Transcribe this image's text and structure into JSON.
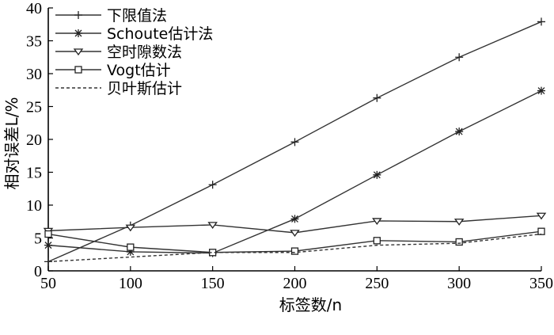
{
  "chart_data": {
    "type": "line",
    "xlabel": "标签数/n",
    "ylabel": "相对误差L/%",
    "xlim": [
      50,
      350
    ],
    "ylim": [
      0,
      40
    ],
    "xticks": [
      50,
      100,
      150,
      200,
      250,
      300,
      350
    ],
    "yticks": [
      0,
      5,
      10,
      15,
      20,
      25,
      30,
      35,
      40
    ],
    "x": [
      50,
      100,
      150,
      200,
      250,
      300,
      350
    ],
    "legend_position": "top-left",
    "series": [
      {
        "name": "下限值法",
        "marker": "plus",
        "dashed": false,
        "values": [
          1.4,
          6.9,
          13.1,
          19.6,
          26.3,
          32.5,
          37.9
        ]
      },
      {
        "name": "Schoute估计法",
        "marker": "asterisk",
        "dashed": false,
        "values": [
          3.9,
          2.9,
          2.7,
          7.9,
          14.6,
          21.2,
          27.4
        ]
      },
      {
        "name": "空时隙数法",
        "marker": "triangle-down",
        "dashed": false,
        "values": [
          6.1,
          6.6,
          7.0,
          5.8,
          7.6,
          7.5,
          8.4
        ]
      },
      {
        "name": "Vogt估计",
        "marker": "square",
        "dashed": false,
        "values": [
          5.6,
          3.6,
          2.8,
          3.0,
          4.6,
          4.4,
          6.0
        ]
      },
      {
        "name": "贝叶斯估计",
        "marker": "none",
        "dashed": true,
        "values": [
          1.4,
          2.1,
          2.8,
          2.8,
          3.9,
          4.2,
          5.6
        ]
      }
    ]
  }
}
